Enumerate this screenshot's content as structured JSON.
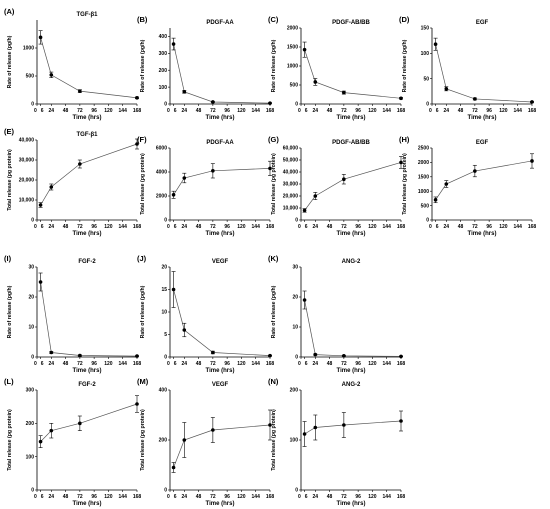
{
  "chart_data": [
    {
      "type": "line",
      "panel_label": "(A)",
      "title": "TGF-β1",
      "xlabel": "Time (hrs)",
      "ylabel": "Rate of release (pg/h)",
      "xticks": [
        "0",
        "6",
        "24",
        "48",
        "72",
        "96",
        "120",
        "144",
        "168"
      ],
      "xlim": [
        0,
        168
      ],
      "yticks": [
        "0",
        "500",
        "1000"
      ],
      "ylim": [
        0,
        1500
      ],
      "series": [
        {
          "x": [
            6,
            24,
            72,
            168
          ],
          "y": [
            1190,
            520,
            230,
            110
          ],
          "err": [
            120,
            50,
            25,
            15
          ]
        }
      ]
    },
    {
      "type": "line",
      "panel_label": "(B)",
      "title": "PDGF-AA",
      "xlabel": "Time (hrs)",
      "ylabel": "Rate of release (pg/h)",
      "xticks": [
        "0",
        "6",
        "24",
        "48",
        "72",
        "96",
        "120",
        "144",
        "168"
      ],
      "xlim": [
        0,
        168
      ],
      "yticks": [
        "0",
        "100",
        "200",
        "300",
        "400"
      ],
      "ylim": [
        0,
        450
      ],
      "series": [
        {
          "x": [
            6,
            24,
            72,
            168
          ],
          "y": [
            355,
            72,
            12,
            5
          ],
          "err": [
            35,
            8,
            3,
            2
          ]
        }
      ]
    },
    {
      "type": "line",
      "panel_label": "(C)",
      "title": "PDGF-AB/BB",
      "xlabel": "Time (hrs)",
      "ylabel": "Rate of release (pg/h)",
      "xticks": [
        "0",
        "6",
        "24",
        "48",
        "72",
        "96",
        "120",
        "144",
        "168"
      ],
      "xlim": [
        0,
        168
      ],
      "yticks": [
        "0",
        "500",
        "1000",
        "1500",
        "2000"
      ],
      "ylim": [
        0,
        2000
      ],
      "series": [
        {
          "x": [
            6,
            24,
            72,
            168
          ],
          "y": [
            1430,
            580,
            300,
            150
          ],
          "err": [
            200,
            90,
            40,
            20
          ]
        }
      ]
    },
    {
      "type": "line",
      "panel_label": "(D)",
      "title": "EGF",
      "xlabel": "Time (hrs)",
      "ylabel": "Rate of release (pg/h)",
      "xticks": [
        "0",
        "6",
        "24",
        "48",
        "72",
        "96",
        "120",
        "144",
        "168"
      ],
      "xlim": [
        0,
        168
      ],
      "yticks": [
        "0",
        "50",
        "100",
        "150"
      ],
      "ylim": [
        0,
        150
      ],
      "series": [
        {
          "x": [
            6,
            24,
            72,
            168
          ],
          "y": [
            118,
            30,
            10,
            4
          ],
          "err": [
            12,
            4,
            2,
            1
          ]
        }
      ]
    },
    {
      "type": "line",
      "panel_label": "(E)",
      "title": "TGF-β1",
      "xlabel": "Time (hrs)",
      "ylabel": "Total release (pg protein)",
      "xticks": [
        "0",
        "6",
        "24",
        "48",
        "72",
        "96",
        "120",
        "144",
        "168"
      ],
      "xlim": [
        0,
        168
      ],
      "yticks": [
        "0",
        "10,000",
        "20,000",
        "30,000",
        "40,000"
      ],
      "ylim": [
        0,
        40000
      ],
      "series": [
        {
          "x": [
            6,
            24,
            72,
            168
          ],
          "y": [
            7500,
            16500,
            28000,
            38000
          ],
          "err": [
            1200,
            1500,
            2000,
            2500
          ]
        }
      ]
    },
    {
      "type": "line",
      "panel_label": "(F)",
      "title": "PDGF-AA",
      "xlabel": "Time (hrs)",
      "ylabel": "Total release (pg protein)",
      "xticks": [
        "0",
        "6",
        "24",
        "48",
        "72",
        "96",
        "120",
        "144",
        "168"
      ],
      "xlim": [
        0,
        168
      ],
      "yticks": [
        "0",
        "2000",
        "4000",
        "6000"
      ],
      "ylim": [
        0,
        6000
      ],
      "series": [
        {
          "x": [
            6,
            24,
            72,
            168
          ],
          "y": [
            2100,
            3500,
            4100,
            4300
          ],
          "err": [
            300,
            400,
            600,
            600
          ]
        }
      ]
    },
    {
      "type": "line",
      "panel_label": "(G)",
      "title": "PDGF-AB/BB",
      "xlabel": "Time (hrs)",
      "ylabel": "Total release (pg protein)",
      "xticks": [
        "0",
        "6",
        "24",
        "48",
        "72",
        "96",
        "120",
        "144",
        "168"
      ],
      "xlim": [
        0,
        168
      ],
      "yticks": [
        "0",
        "10,000",
        "20,000",
        "30,000",
        "40,000",
        "50,000",
        "60,000"
      ],
      "ylim": [
        0,
        60000
      ],
      "series": [
        {
          "x": [
            6,
            24,
            72,
            168
          ],
          "y": [
            8000,
            20000,
            34000,
            48000
          ],
          "err": [
            1500,
            3000,
            4000,
            5000
          ]
        }
      ]
    },
    {
      "type": "line",
      "panel_label": "(H)",
      "title": "EGF",
      "xlabel": "Time (hrs)",
      "ylabel": "Total release (pg protein)",
      "xticks": [
        "0",
        "6",
        "24",
        "48",
        "72",
        "96",
        "120",
        "144",
        "168"
      ],
      "xlim": [
        0,
        168
      ],
      "yticks": [
        "0",
        "500",
        "1000",
        "1500",
        "2000",
        "2500"
      ],
      "ylim": [
        0,
        2500
      ],
      "series": [
        {
          "x": [
            6,
            24,
            72,
            168
          ],
          "y": [
            700,
            1250,
            1700,
            2050
          ],
          "err": [
            100,
            120,
            200,
            250
          ]
        }
      ]
    },
    {
      "type": "line",
      "panel_label": "(I)",
      "title": "FGF-2",
      "xlabel": "Time (hrs)",
      "ylabel": "Rate of release (pg/h)",
      "xticks": [
        "0",
        "6",
        "24",
        "48",
        "72",
        "96",
        "120",
        "144",
        "168"
      ],
      "xlim": [
        0,
        168
      ],
      "yticks": [
        "0",
        "10",
        "20",
        "30"
      ],
      "ylim": [
        0,
        30
      ],
      "series": [
        {
          "x": [
            6,
            24,
            72,
            168
          ],
          "y": [
            25,
            1.5,
            0.5,
            0.3
          ],
          "err": [
            3,
            0.3,
            0.2,
            0.1
          ]
        }
      ]
    },
    {
      "type": "line",
      "panel_label": "(J)",
      "title": "VEGF",
      "xlabel": "Time (hrs)",
      "ylabel": "Rate of release (pg/h)",
      "xticks": [
        "0",
        "6",
        "24",
        "48",
        "72",
        "96",
        "120",
        "144",
        "168"
      ],
      "xlim": [
        0,
        168
      ],
      "yticks": [
        "0",
        "5",
        "10",
        "15",
        "20"
      ],
      "ylim": [
        0,
        20
      ],
      "series": [
        {
          "x": [
            6,
            24,
            72,
            168
          ],
          "y": [
            15,
            6,
            1,
            0.3
          ],
          "err": [
            4,
            1.5,
            0.3,
            0.1
          ]
        }
      ]
    },
    {
      "type": "line",
      "panel_label": "(K)",
      "title": "ANG-2",
      "xlabel": "Time (hrs)",
      "ylabel": "Rate of release (pg/h)",
      "xticks": [
        "0",
        "6",
        "24",
        "48",
        "72",
        "96",
        "120",
        "144",
        "168"
      ],
      "xlim": [
        0,
        168
      ],
      "yticks": [
        "0",
        "10",
        "20",
        "30"
      ],
      "ylim": [
        0,
        30
      ],
      "series": [
        {
          "x": [
            6,
            24,
            72,
            168
          ],
          "y": [
            19,
            0.8,
            0.4,
            0.2
          ],
          "err": [
            3,
            0.2,
            0.1,
            0.1
          ]
        }
      ]
    },
    {
      "type": "line",
      "panel_label": "(L)",
      "title": "FGF-2",
      "xlabel": "Time (hrs)",
      "ylabel": "Total release (pg protein)",
      "xticks": [
        "0",
        "6",
        "24",
        "48",
        "72",
        "96",
        "120",
        "144",
        "168"
      ],
      "xlim": [
        0,
        168
      ],
      "yticks": [
        "0",
        "100",
        "200",
        "300"
      ],
      "ylim": [
        0,
        300
      ],
      "series": [
        {
          "x": [
            6,
            24,
            72,
            168
          ],
          "y": [
            145,
            178,
            200,
            258
          ],
          "err": [
            18,
            22,
            22,
            25
          ]
        }
      ]
    },
    {
      "type": "line",
      "panel_label": "(M)",
      "title": "VEGF",
      "xlabel": "Time (hrs)",
      "ylabel": "Total release (pg protein)",
      "xticks": [
        "0",
        "6",
        "24",
        "48",
        "72",
        "96",
        "120",
        "144",
        "168"
      ],
      "xlim": [
        0,
        168
      ],
      "yticks": [
        "0",
        "200",
        "400"
      ],
      "ylim": [
        0,
        400
      ],
      "series": [
        {
          "x": [
            6,
            24,
            72,
            168
          ],
          "y": [
            90,
            200,
            240,
            260
          ],
          "err": [
            20,
            70,
            50,
            60
          ]
        }
      ]
    },
    {
      "type": "line",
      "panel_label": "(N)",
      "title": "ANG-2",
      "xlabel": "Time (hrs)",
      "ylabel": "Total release (pg protein)",
      "xticks": [
        "0",
        "6",
        "24",
        "48",
        "72",
        "96",
        "120",
        "144",
        "168"
      ],
      "xlim": [
        0,
        168
      ],
      "yticks": [
        "0",
        "100",
        "200"
      ],
      "ylim": [
        0,
        200
      ],
      "series": [
        {
          "x": [
            6,
            24,
            72,
            168
          ],
          "y": [
            112,
            125,
            130,
            138
          ],
          "err": [
            25,
            25,
            25,
            20
          ]
        }
      ]
    }
  ]
}
